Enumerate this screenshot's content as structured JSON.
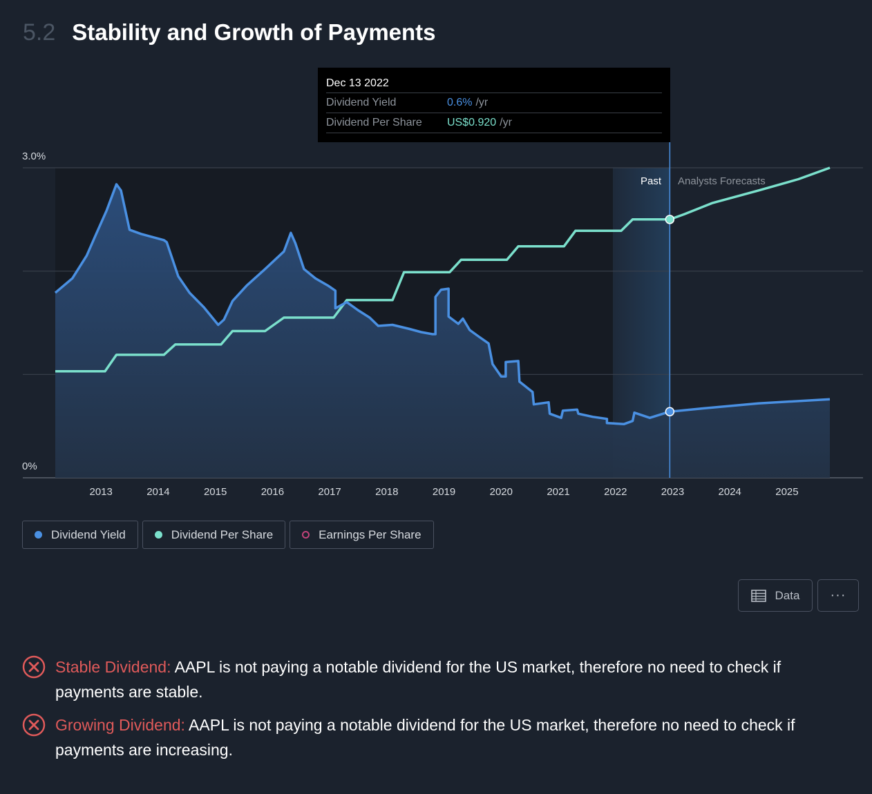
{
  "header": {
    "number": "5.2",
    "title": "Stability and Growth of Payments"
  },
  "tooltip": {
    "date": "Dec 13 2022",
    "rows": [
      {
        "label": "Dividend Yield",
        "value": "0.6%",
        "unit": "/yr"
      },
      {
        "label": "Dividend Per Share",
        "value": "US$0.920",
        "unit": "/yr"
      }
    ]
  },
  "legend": [
    {
      "label": "Dividend Yield",
      "color": "#4a90e2",
      "filled": true
    },
    {
      "label": "Dividend Per Share",
      "color": "#7be0cc",
      "filled": true
    },
    {
      "label": "Earnings Per Share",
      "color": "#c2437a",
      "filled": false
    }
  ],
  "buttons": {
    "data": "Data",
    "more": "···"
  },
  "checks": [
    {
      "name": "Stable Dividend:",
      "text": " AAPL is not paying a notable dividend for the US market, therefore no need to check if payments are stable."
    },
    {
      "name": "Growing Dividend:",
      "text": " AAPL is not paying a notable dividend for the US market, therefore no need to check if payments are increasing."
    }
  ],
  "chart_data": {
    "type": "line",
    "title": "",
    "xlabel": "",
    "ylabel": "",
    "xlim": [
      2012.2,
      2025.75
    ],
    "ylim": [
      0,
      3.0
    ],
    "y_ticks": [
      "3.0%",
      "0%"
    ],
    "y_gridlines": [
      1.0,
      2.0,
      3.0
    ],
    "x_ticks": [
      "2013",
      "2014",
      "2015",
      "2016",
      "2017",
      "2018",
      "2019",
      "2020",
      "2021",
      "2022",
      "2023",
      "2024",
      "2025"
    ],
    "regions": {
      "past_label": "Past",
      "forecast_label": "Analysts Forecasts",
      "divider_x": 2022.95,
      "highlight_start_x": 2021.95
    },
    "series": [
      {
        "name": "Dividend Yield",
        "color": "#4a90e2",
        "points": [
          [
            2012.2,
            1.79
          ],
          [
            2012.5,
            1.93
          ],
          [
            2012.75,
            2.15
          ],
          [
            2012.9,
            2.34
          ],
          [
            2013.1,
            2.59
          ],
          [
            2013.27,
            2.84
          ],
          [
            2013.35,
            2.78
          ],
          [
            2013.5,
            2.4
          ],
          [
            2013.7,
            2.36
          ],
          [
            2013.9,
            2.33
          ],
          [
            2014.1,
            2.3
          ],
          [
            2014.15,
            2.28
          ],
          [
            2014.35,
            1.95
          ],
          [
            2014.55,
            1.79
          ],
          [
            2014.8,
            1.65
          ],
          [
            2015.05,
            1.48
          ],
          [
            2015.15,
            1.53
          ],
          [
            2015.3,
            1.71
          ],
          [
            2015.55,
            1.86
          ],
          [
            2015.85,
            2.01
          ],
          [
            2016.2,
            2.19
          ],
          [
            2016.32,
            2.37
          ],
          [
            2016.4,
            2.27
          ],
          [
            2016.55,
            2.02
          ],
          [
            2016.75,
            1.93
          ],
          [
            2016.97,
            1.86
          ],
          [
            2017.1,
            1.81
          ],
          [
            2017.1,
            1.64
          ],
          [
            2017.3,
            1.7
          ],
          [
            2017.5,
            1.62
          ],
          [
            2017.7,
            1.55
          ],
          [
            2017.85,
            1.47
          ],
          [
            2018.1,
            1.48
          ],
          [
            2018.4,
            1.44
          ],
          [
            2018.6,
            1.41
          ],
          [
            2018.8,
            1.39
          ],
          [
            2018.85,
            1.39
          ],
          [
            2018.85,
            1.75
          ],
          [
            2018.95,
            1.82
          ],
          [
            2019.08,
            1.83
          ],
          [
            2019.08,
            1.56
          ],
          [
            2019.25,
            1.49
          ],
          [
            2019.33,
            1.54
          ],
          [
            2019.45,
            1.43
          ],
          [
            2019.6,
            1.37
          ],
          [
            2019.78,
            1.3
          ],
          [
            2019.85,
            1.1
          ],
          [
            2020.0,
            0.98
          ],
          [
            2020.08,
            0.98
          ],
          [
            2020.08,
            1.12
          ],
          [
            2020.3,
            1.13
          ],
          [
            2020.32,
            0.93
          ],
          [
            2020.55,
            0.83
          ],
          [
            2020.57,
            0.71
          ],
          [
            2020.83,
            0.73
          ],
          [
            2020.85,
            0.62
          ],
          [
            2021.05,
            0.58
          ],
          [
            2021.08,
            0.65
          ],
          [
            2021.33,
            0.66
          ],
          [
            2021.35,
            0.62
          ],
          [
            2021.6,
            0.59
          ],
          [
            2021.85,
            0.57
          ],
          [
            2021.85,
            0.53
          ],
          [
            2022.15,
            0.52
          ],
          [
            2022.3,
            0.55
          ],
          [
            2022.33,
            0.63
          ],
          [
            2022.6,
            0.58
          ],
          [
            2022.95,
            0.64
          ],
          [
            2023.5,
            0.67
          ],
          [
            2024.5,
            0.72
          ],
          [
            2025.75,
            0.76
          ]
        ]
      },
      {
        "name": "Dividend Per Share",
        "color": "#7be0cc",
        "points": [
          [
            2012.2,
            1.03
          ],
          [
            2013.07,
            1.03
          ],
          [
            2013.27,
            1.19
          ],
          [
            2014.1,
            1.19
          ],
          [
            2014.3,
            1.29
          ],
          [
            2015.1,
            1.29
          ],
          [
            2015.3,
            1.42
          ],
          [
            2015.87,
            1.42
          ],
          [
            2016.2,
            1.55
          ],
          [
            2017.07,
            1.55
          ],
          [
            2017.3,
            1.72
          ],
          [
            2018.1,
            1.72
          ],
          [
            2018.3,
            1.99
          ],
          [
            2019.1,
            1.99
          ],
          [
            2019.3,
            2.11
          ],
          [
            2020.1,
            2.11
          ],
          [
            2020.3,
            2.24
          ],
          [
            2021.1,
            2.24
          ],
          [
            2021.3,
            2.39
          ],
          [
            2022.1,
            2.39
          ],
          [
            2022.3,
            2.5
          ],
          [
            2022.95,
            2.5
          ],
          [
            2023.2,
            2.55
          ],
          [
            2023.7,
            2.66
          ],
          [
            2024.5,
            2.78
          ],
          [
            2025.2,
            2.89
          ],
          [
            2025.75,
            3.0
          ]
        ]
      }
    ],
    "markers": [
      {
        "series": "Dividend Yield",
        "x": 2022.95,
        "y": 0.64
      },
      {
        "series": "Dividend Per Share",
        "x": 2022.95,
        "y": 2.5
      }
    ]
  }
}
